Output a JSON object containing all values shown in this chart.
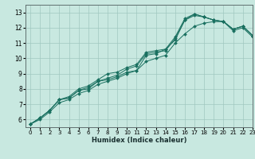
{
  "xlabel": "Humidex (Indice chaleur)",
  "bg_color": "#c8e8e0",
  "grid_color": "#a0c8c0",
  "line_color": "#1a7060",
  "xlim": [
    -0.5,
    23
  ],
  "ylim": [
    5.5,
    13.5
  ],
  "xticks": [
    0,
    1,
    2,
    3,
    4,
    5,
    6,
    7,
    8,
    9,
    10,
    11,
    12,
    13,
    14,
    15,
    16,
    17,
    18,
    19,
    20,
    21,
    22,
    23
  ],
  "yticks": [
    6,
    7,
    8,
    9,
    10,
    11,
    12,
    13
  ],
  "series": [
    [
      5.7,
      6.1,
      6.6,
      7.3,
      7.4,
      7.9,
      8.0,
      8.5,
      8.6,
      8.8,
      9.1,
      9.2,
      10.2,
      10.3,
      10.6,
      11.2,
      12.5,
      12.8,
      12.7,
      12.5,
      12.4,
      11.9,
      12.1,
      11.5
    ],
    [
      5.7,
      6.1,
      6.6,
      7.3,
      7.4,
      7.9,
      8.1,
      8.5,
      8.7,
      8.9,
      9.3,
      9.5,
      10.3,
      10.4,
      10.5,
      11.3,
      12.5,
      12.9,
      12.7,
      12.5,
      12.4,
      11.9,
      12.1,
      11.5
    ],
    [
      5.7,
      6.1,
      6.6,
      7.3,
      7.5,
      8.0,
      8.2,
      8.6,
      9.0,
      9.1,
      9.4,
      9.6,
      10.4,
      10.5,
      10.6,
      11.4,
      12.6,
      12.9,
      12.7,
      12.5,
      12.4,
      11.9,
      12.1,
      11.5
    ],
    [
      5.7,
      6.0,
      6.5,
      7.1,
      7.3,
      7.7,
      7.9,
      8.3,
      8.5,
      8.7,
      9.0,
      9.2,
      9.8,
      10.0,
      10.2,
      11.0,
      11.6,
      12.1,
      12.3,
      12.4,
      12.4,
      11.8,
      12.0,
      11.4
    ]
  ]
}
